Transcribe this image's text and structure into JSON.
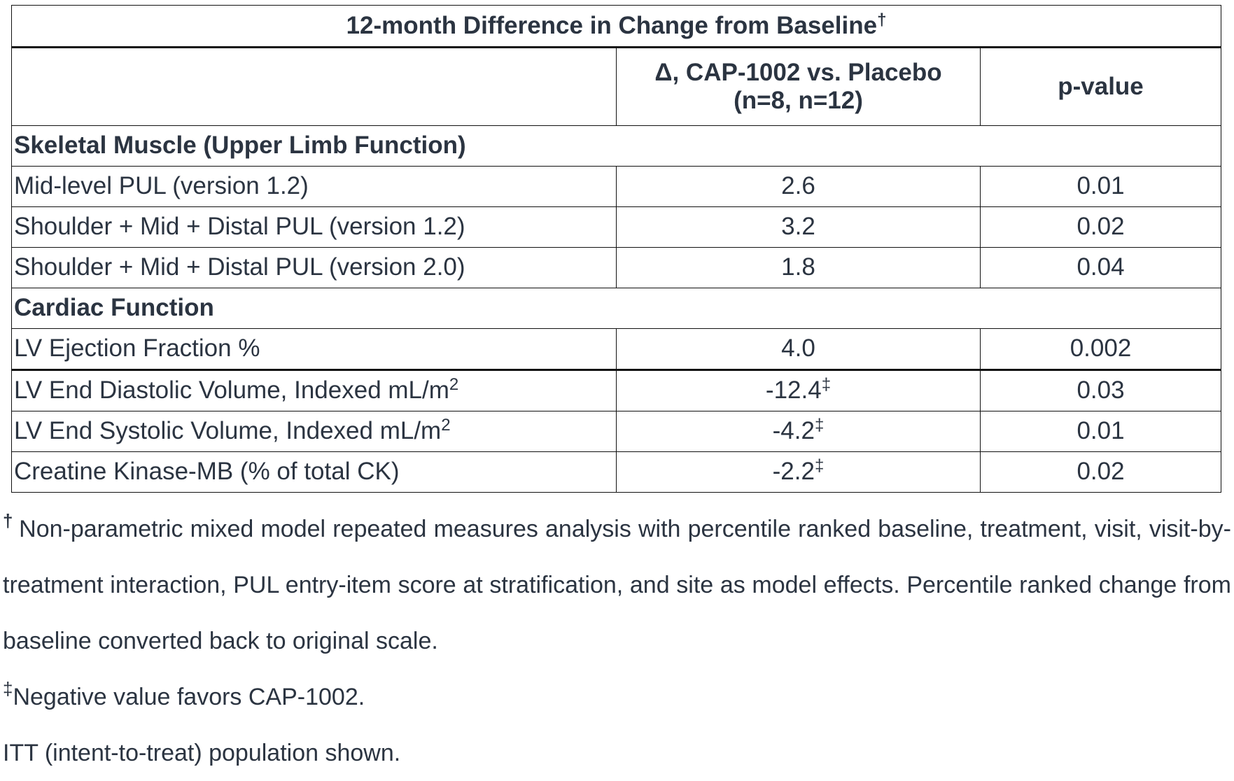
{
  "table": {
    "title": "12-month Difference in Change from Baseline",
    "title_mark": "†",
    "header": {
      "col1": "",
      "col2_line1": "Δ, CAP-1002 vs. Placebo",
      "col2_line2": "(n=8, n=12)",
      "col3": "p-value"
    },
    "sections": [
      {
        "heading": "Skeletal Muscle (Upper Limb Function)",
        "rows": [
          {
            "label": "Mid-level PUL (version 1.2)",
            "delta": "2.6",
            "p": "0.01"
          },
          {
            "label": "Shoulder + Mid + Distal PUL (version 1.2)",
            "delta": "3.2",
            "p": "0.02"
          },
          {
            "label": "Shoulder + Mid + Distal PUL (version 2.0)",
            "delta": "1.8",
            "p": "0.04"
          }
        ]
      },
      {
        "heading": "Cardiac Function",
        "rows": [
          {
            "label": "LV Ejection Fraction %",
            "delta": "4.0",
            "p": "0.002"
          },
          {
            "label": "LV End Diastolic Volume, Indexed mL/m",
            "label_sup": "2",
            "delta": "-12.4",
            "delta_mark": "‡",
            "p": "0.03"
          },
          {
            "label": "LV End Systolic Volume, Indexed mL/m",
            "label_sup": "2",
            "delta": "-4.2",
            "delta_mark": "‡",
            "p": "0.01"
          },
          {
            "label": "Creatine Kinase-MB (% of total CK)",
            "delta": "-2.2",
            "delta_mark": "‡",
            "p": "0.02"
          }
        ]
      }
    ]
  },
  "footnotes": {
    "dagger_mark": "†",
    "dagger_text": "Non-parametric mixed model repeated measures analysis with percentile ranked baseline, treatment, visit, visit-by-treatment interaction, PUL entry-item score at stratification, and site as model effects. Percentile ranked change from baseline converted back to original scale.",
    "ddagger_mark": "‡",
    "ddagger_text": "Negative value favors CAP-1002.",
    "itt_text": "ITT (intent-to-treat) population shown."
  }
}
